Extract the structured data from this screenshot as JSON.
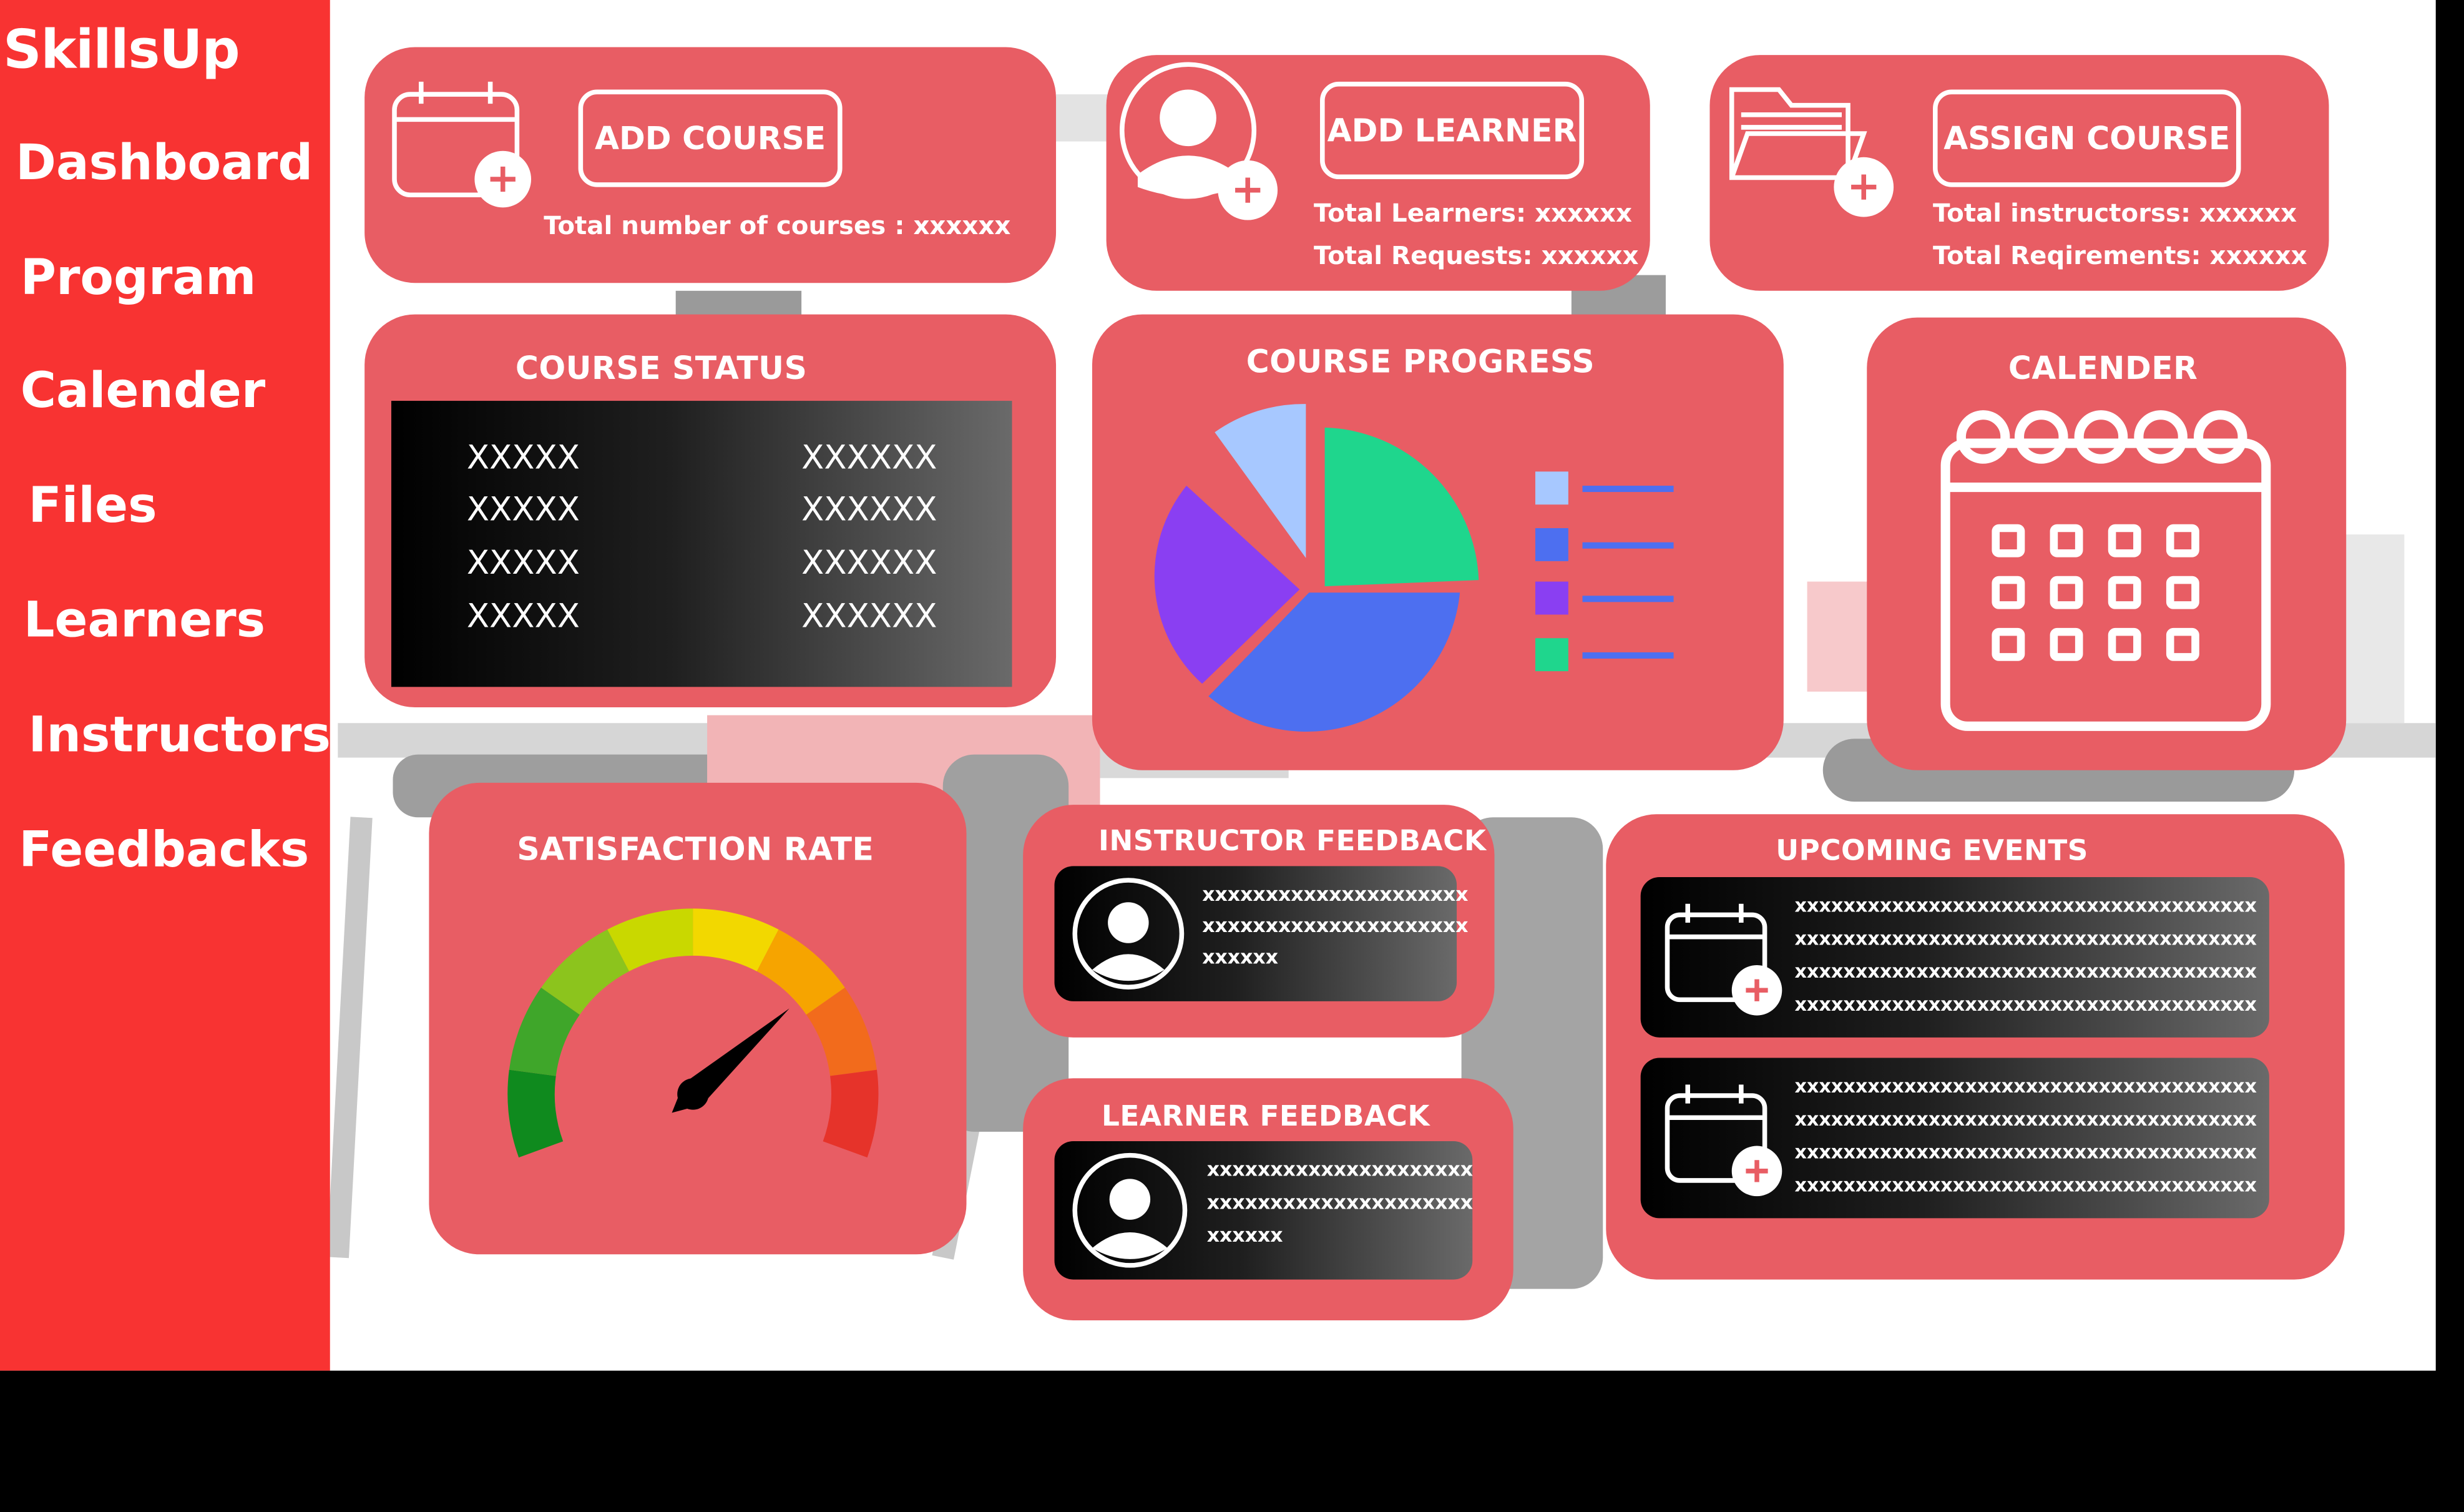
{
  "app": {
    "brand": "SkillsUp"
  },
  "sidebar": {
    "items": [
      {
        "label": "Dashboard"
      },
      {
        "label": "Program"
      },
      {
        "label": "Calender"
      },
      {
        "label": "Files"
      },
      {
        "label": "Learners"
      },
      {
        "label": "Instructors"
      },
      {
        "label": "Feedbacks"
      }
    ]
  },
  "top_cards": {
    "course": {
      "button": "ADD COURSE",
      "stat1": "Total number of courses : xxxxxx",
      "icon": "calendar-add-icon"
    },
    "learner": {
      "button": "ADD LEARNER",
      "stat1": "Total Learners: xxxxxx",
      "stat2": "Total Requests: xxxxxx",
      "icon": "user-add-icon"
    },
    "assign": {
      "button": "ASSIGN COURSE",
      "stat1": "Total instructorss: xxxxxx",
      "stat2": "Total Reqirements: xxxxxx",
      "icon": "folder-add-icon"
    }
  },
  "course_status": {
    "title": "COURSE STATUS",
    "rows": [
      [
        "XXXXX",
        "XXXXXX"
      ],
      [
        "XXXXX",
        "XXXXXX"
      ],
      [
        "XXXXX",
        "XXXXXX"
      ],
      [
        "XXXXX",
        "XXXXXX"
      ]
    ]
  },
  "course_progress": {
    "title": "COURSE PROGRESS",
    "colors": [
      "#a7c8ff",
      "#4d6ff0",
      "#8a3ff2",
      "#1fd68d"
    ]
  },
  "calendar": {
    "title": "CALENDER",
    "icon": "calendar-icon"
  },
  "satisfaction": {
    "title": "SATISFACTION RATE",
    "level": 0.72,
    "colors": [
      "#0f8a1e",
      "#3fa62a",
      "#8cc41d",
      "#c9d800",
      "#f2d800",
      "#f6a400",
      "#f26b1c",
      "#e6332a"
    ]
  },
  "instructor_feedback": {
    "title": "INSTRUCTOR FEEDBACK",
    "lines": [
      "xxxxxxxxxxxxxxxxxxxxx",
      "xxxxxxxxxxxxxxxxxxxxx",
      "xxxxxx"
    ]
  },
  "learner_feedback": {
    "title": "LEARNER FEEDBACK",
    "lines": [
      "xxxxxxxxxxxxxxxxxxxxx",
      "xxxxxxxxxxxxxxxxxxxxx",
      "xxxxxx"
    ]
  },
  "upcoming_events": {
    "title": "UPCOMING EVENTS",
    "events": [
      {
        "lines": [
          "xxxxxxxxxxxxxxxxxxxxxxxxxxxxxxxxxxxxxx",
          "xxxxxxxxxxxxxxxxxxxxxxxxxxxxxxxxxxxxxx",
          "xxxxxxxxxxxxxxxxxxxxxxxxxxxxxxxxxxxxxx",
          "xxxxxxxxxxxxxxxxxxxxxxxxxxxxxxxxxxxxxx"
        ]
      },
      {
        "lines": [
          "xxxxxxxxxxxxxxxxxxxxxxxxxxxxxxxxxxxxxx",
          "xxxxxxxxxxxxxxxxxxxxxxxxxxxxxxxxxxxxxx",
          "xxxxxxxxxxxxxxxxxxxxxxxxxxxxxxxxxxxxxx",
          "xxxxxxxxxxxxxxxxxxxxxxxxxxxxxxxxxxxxxx"
        ]
      }
    ]
  },
  "theme": {
    "sidebar": "#f83332",
    "card": "#e85d64"
  }
}
